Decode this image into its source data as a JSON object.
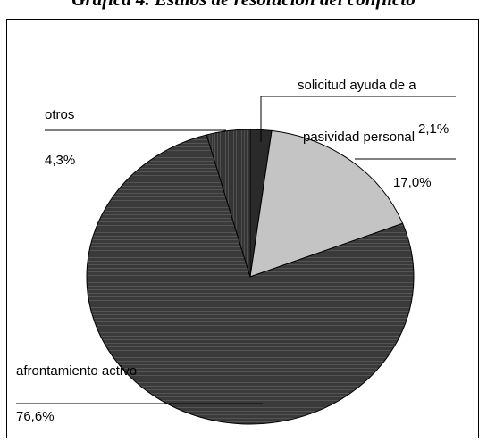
{
  "chart_data": {
    "type": "pie",
    "title": "Gráfica 4. Estilos de resolución del conflicto",
    "slices": [
      {
        "label": "solicitud ayuda de a",
        "value": 2.1,
        "value_text": "2,1%",
        "color": "#2a2a2a"
      },
      {
        "label": "pasividad personal",
        "value": 17.0,
        "value_text": "17,0%",
        "color": "#c4c4c4"
      },
      {
        "label": "afrontamiento activo",
        "value": 76.6,
        "value_text": "76,6%",
        "color": "#3c3c3c"
      },
      {
        "label": "otros",
        "value": 4.3,
        "value_text": "4,3%",
        "color": "#4a4a4a"
      }
    ],
    "start_angle_deg": 0,
    "direction": "clockwise",
    "style": "3d-tilted",
    "legend": "none",
    "labels": "outside-with-leader-lines"
  }
}
